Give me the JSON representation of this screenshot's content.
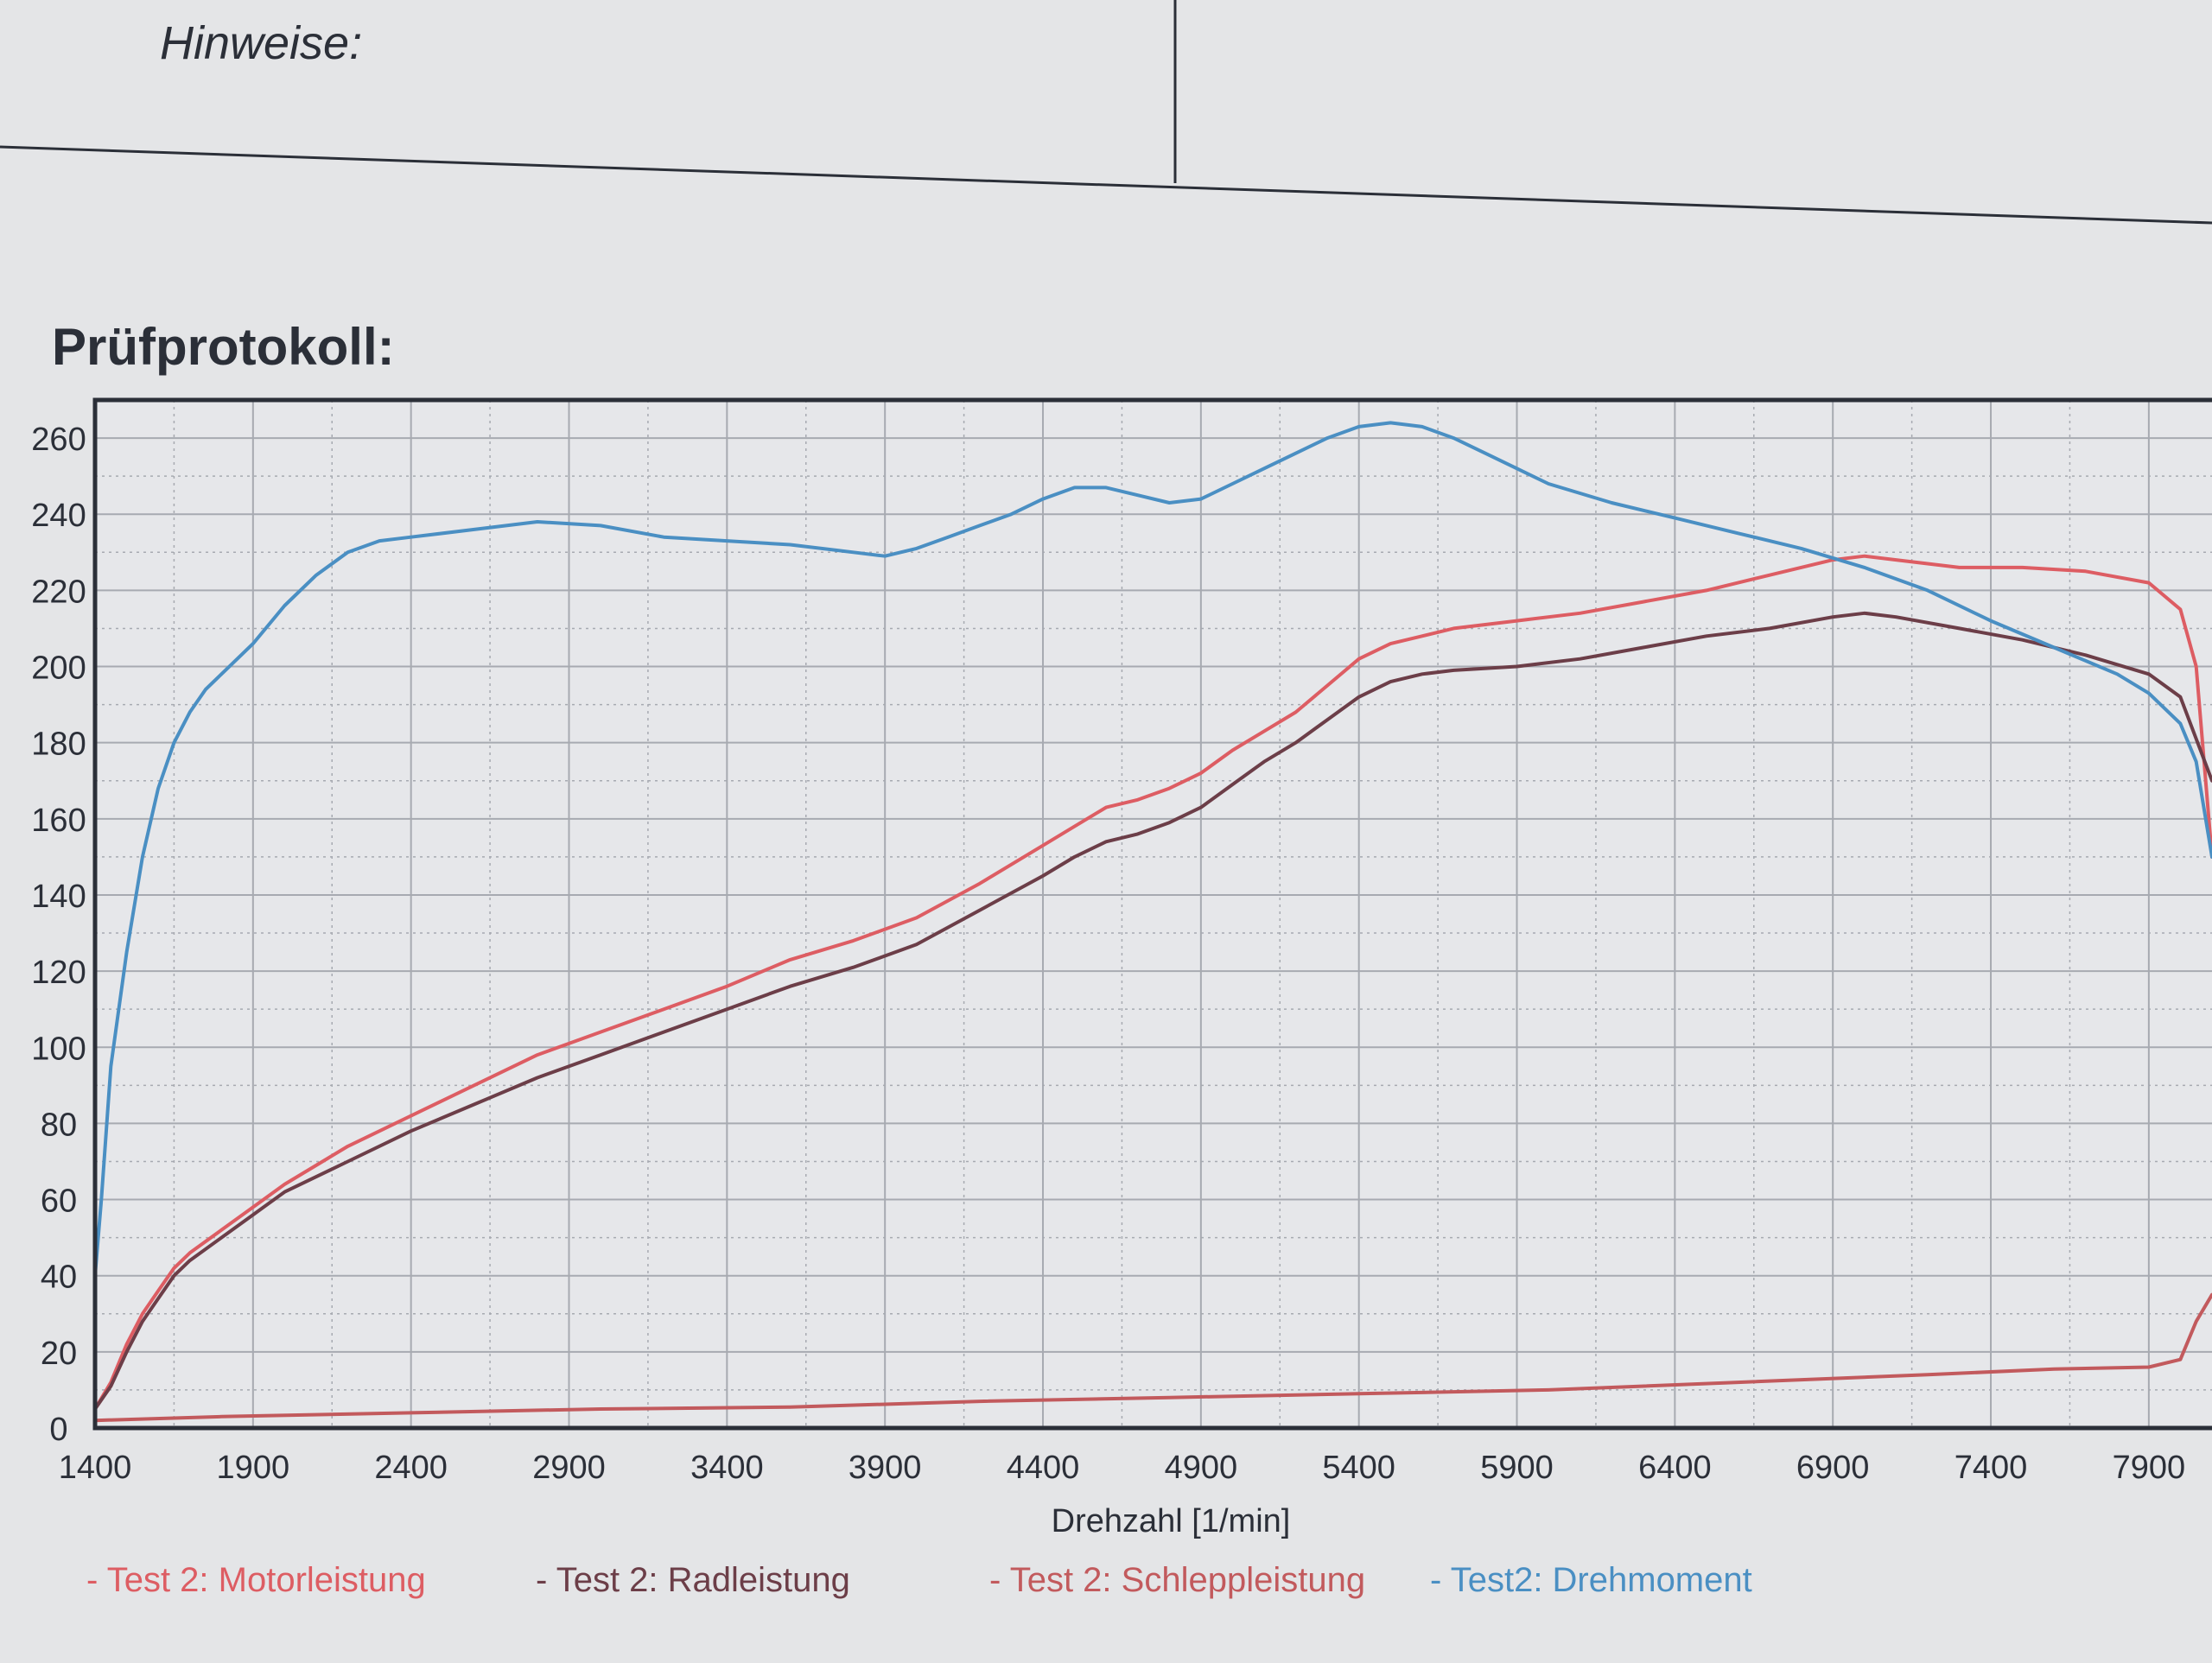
{
  "header": {
    "hinweise_label": "Hinweise:",
    "section_title": "Prüfprotokoll:"
  },
  "colors": {
    "paper": "#e4e5e7",
    "grid": "#a7aab1",
    "frame": "#2b2f38",
    "motorleistung": "#dd5d63",
    "radleistung": "#6c3e48",
    "schleppleistung": "#c25a5d",
    "drehmoment": "#4a8fc3"
  },
  "chart_data": {
    "type": "line",
    "title": "",
    "xlabel": "Drehzahl [1/min]",
    "ylabel": "",
    "xlim": [
      1400,
      8100
    ],
    "ylim": [
      0,
      270
    ],
    "grid": true,
    "legend_position": "bottom",
    "x_ticks": [
      1400,
      1900,
      2400,
      2900,
      3400,
      3900,
      4400,
      4900,
      5400,
      5900,
      6400,
      6900,
      7400,
      7900
    ],
    "y_ticks": [
      0,
      20,
      40,
      60,
      80,
      100,
      120,
      140,
      160,
      180,
      200,
      220,
      240,
      260
    ],
    "series": [
      {
        "name": "- Test 2: Motorleistung",
        "color_key": "motorleistung",
        "x": [
          1400,
          1450,
          1500,
          1550,
          1600,
          1650,
          1700,
          1800,
          1900,
          2000,
          2200,
          2400,
          2600,
          2800,
          3000,
          3200,
          3400,
          3600,
          3800,
          4000,
          4200,
          4400,
          4500,
          4600,
          4700,
          4800,
          4900,
          5000,
          5100,
          5200,
          5300,
          5400,
          5500,
          5600,
          5700,
          5900,
          6100,
          6300,
          6500,
          6700,
          6900,
          7000,
          7100,
          7300,
          7500,
          7700,
          7900,
          8000,
          8050,
          8100
        ],
        "y": [
          5,
          12,
          22,
          30,
          36,
          42,
          46,
          52,
          58,
          64,
          74,
          82,
          90,
          98,
          104,
          110,
          116,
          123,
          128,
          134,
          143,
          153,
          158,
          163,
          165,
          168,
          172,
          178,
          183,
          188,
          195,
          202,
          206,
          208,
          210,
          212,
          214,
          217,
          220,
          224,
          228,
          229,
          228,
          226,
          226,
          225,
          222,
          215,
          200,
          150
        ]
      },
      {
        "name": "- Test 2: Radleistung",
        "color_key": "radleistung",
        "x": [
          1400,
          1450,
          1500,
          1550,
          1600,
          1650,
          1700,
          1800,
          1900,
          2000,
          2200,
          2400,
          2600,
          2800,
          3000,
          3200,
          3400,
          3600,
          3800,
          4000,
          4200,
          4400,
          4500,
          4600,
          4700,
          4800,
          4900,
          5000,
          5100,
          5200,
          5300,
          5400,
          5500,
          5600,
          5700,
          5900,
          6100,
          6300,
          6500,
          6700,
          6900,
          7000,
          7100,
          7300,
          7500,
          7700,
          7900,
          8000,
          8100
        ],
        "y": [
          5,
          11,
          20,
          28,
          34,
          40,
          44,
          50,
          56,
          62,
          70,
          78,
          85,
          92,
          98,
          104,
          110,
          116,
          121,
          127,
          136,
          145,
          150,
          154,
          156,
          159,
          163,
          169,
          175,
          180,
          186,
          192,
          196,
          198,
          199,
          200,
          202,
          205,
          208,
          210,
          213,
          214,
          213,
          210,
          207,
          203,
          198,
          192,
          170
        ]
      },
      {
        "name": "- Test 2: Schleppleistung",
        "color_key": "schleppleistung",
        "x": [
          1400,
          1800,
          2400,
          3000,
          3600,
          4200,
          4800,
          5400,
          6000,
          6600,
          7200,
          7600,
          7900,
          8000,
          8050,
          8100
        ],
        "y": [
          2,
          3,
          4,
          5,
          5.5,
          7,
          8,
          9,
          10,
          12,
          14,
          15.5,
          16,
          18,
          28,
          35
        ]
      },
      {
        "name": "- Test2: Drehmoment",
        "color_key": "drehmoment",
        "x": [
          1400,
          1420,
          1450,
          1500,
          1550,
          1600,
          1650,
          1700,
          1750,
          1800,
          1900,
          2000,
          2100,
          2200,
          2300,
          2400,
          2600,
          2800,
          3000,
          3200,
          3400,
          3600,
          3800,
          3900,
          4000,
          4100,
          4200,
          4300,
          4400,
          4500,
          4600,
          4700,
          4800,
          4900,
          5000,
          5100,
          5200,
          5300,
          5400,
          5500,
          5600,
          5700,
          5800,
          5900,
          6000,
          6200,
          6400,
          6600,
          6800,
          7000,
          7200,
          7400,
          7600,
          7800,
          7900,
          8000,
          8050,
          8100
        ],
        "y": [
          40,
          60,
          95,
          125,
          150,
          168,
          180,
          188,
          194,
          198,
          206,
          216,
          224,
          230,
          233,
          234,
          236,
          238,
          237,
          234,
          233,
          232,
          230,
          229,
          231,
          234,
          237,
          240,
          244,
          247,
          247,
          245,
          243,
          244,
          248,
          252,
          256,
          260,
          263,
          264,
          263,
          260,
          256,
          252,
          248,
          243,
          239,
          235,
          231,
          226,
          220,
          212,
          205,
          198,
          193,
          185,
          175,
          150
        ]
      }
    ]
  }
}
